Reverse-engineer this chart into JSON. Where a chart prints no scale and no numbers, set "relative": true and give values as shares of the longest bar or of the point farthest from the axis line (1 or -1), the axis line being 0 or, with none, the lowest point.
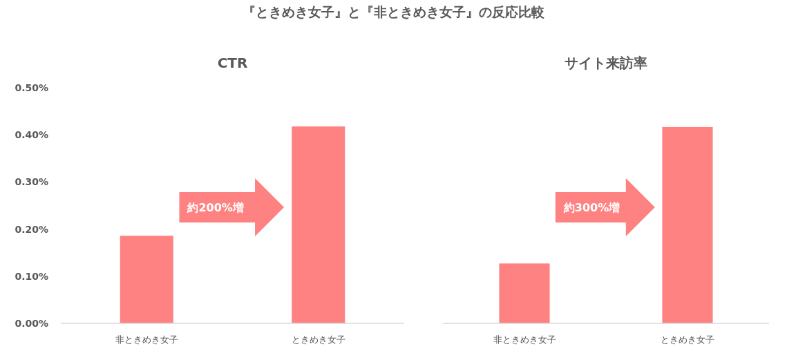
{
  "chart_data": [
    {
      "type": "bar",
      "title": "CTR",
      "categories": [
        "非ときめき女子",
        "ときめき女子"
      ],
      "values": [
        0.186,
        0.418
      ],
      "color": "#ff8282",
      "ylim": [
        0,
        0.5
      ],
      "yticks": [
        {
          "value": 0,
          "label": "0.00%"
        },
        {
          "value": 0.1,
          "label": "0.10%"
        },
        {
          "value": 0.2,
          "label": "0.20%"
        },
        {
          "value": 0.3,
          "label": "0.30%"
        },
        {
          "value": 0.4,
          "label": "0.40%"
        },
        {
          "value": 0.5,
          "label": "0.50%"
        }
      ],
      "annotations": [
        "『ときめき女子』と『非ときめき女子』の反応比較",
        "約200%増"
      ]
    },
    {
      "type": "bar",
      "title": "サイト来訪率",
      "categories": [
        "非ときめき女子",
        "ときめき女子"
      ],
      "values": [
        0.305,
        1
      ],
      "color": "#ff8282",
      "relative": true,
      "annotations": [
        "約300%増"
      ]
    }
  ]
}
